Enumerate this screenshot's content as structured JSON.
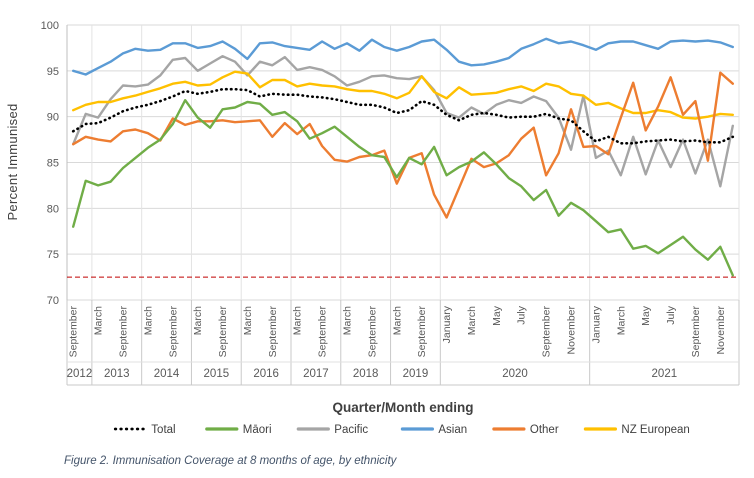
{
  "figure": {
    "caption": "Figure 2. Immunisation Coverage at 8 months of age, by ethnicity"
  },
  "chart_data": {
    "type": "line",
    "title": "",
    "xlabel": "Quarter/Month ending",
    "ylabel": "Percent Immunised",
    "ylim": [
      70,
      100
    ],
    "yticks": [
      70,
      75,
      80,
      85,
      90,
      95,
      100
    ],
    "grid": true,
    "legend_position": "bottom",
    "reference_line": {
      "value": 72.5,
      "color": "#C00000",
      "style": "dashed"
    },
    "axis_colors": {
      "grid": "#D9D9D9",
      "boundary": "#C9C9C9",
      "text": "#595959"
    },
    "x_groups": [
      {
        "year": "2012",
        "months": [
          "September",
          ""
        ]
      },
      {
        "year": "2013",
        "months": [
          "March",
          "",
          "September",
          ""
        ]
      },
      {
        "year": "2014",
        "months": [
          "March",
          "",
          "September",
          ""
        ]
      },
      {
        "year": "2015",
        "months": [
          "March",
          "",
          "September",
          ""
        ]
      },
      {
        "year": "2016",
        "months": [
          "March",
          "",
          "September",
          ""
        ]
      },
      {
        "year": "2017",
        "months": [
          "March",
          "",
          "September",
          ""
        ]
      },
      {
        "year": "2018",
        "months": [
          "March",
          "",
          "September",
          ""
        ]
      },
      {
        "year": "2019",
        "months": [
          "March",
          "",
          "September",
          ""
        ]
      },
      {
        "year": "2020",
        "months": [
          "January",
          "",
          "March",
          "",
          "May",
          "",
          "July",
          "",
          "September",
          "",
          "November",
          ""
        ]
      },
      {
        "year": "2021",
        "months": [
          "January",
          "",
          "March",
          "",
          "May",
          "",
          "July",
          "",
          "September",
          "",
          "November",
          ""
        ]
      }
    ],
    "series": [
      {
        "name": "Total",
        "color": "#000000",
        "style": "dotted",
        "values": [
          88.4,
          89.2,
          89.3,
          89.9,
          90.6,
          91.0,
          91.3,
          91.7,
          92.2,
          92.8,
          92.5,
          92.7,
          93.0,
          93.0,
          92.9,
          92.2,
          92.5,
          92.4,
          92.4,
          92.2,
          92.1,
          91.9,
          91.6,
          91.3,
          91.3,
          91.0,
          90.4,
          90.7,
          91.7,
          91.3,
          90.2,
          89.6,
          90.2,
          90.4,
          90.2,
          89.9,
          90.0,
          90.0,
          90.3,
          89.8,
          89.6,
          88.4,
          87.3,
          87.8,
          87.1,
          87.1,
          87.3,
          87.4,
          87.5,
          87.3,
          87.4,
          87.2,
          87.2,
          87.8
        ]
      },
      {
        "name": "Māori",
        "color": "#70AD47",
        "style": "solid",
        "values": [
          78.0,
          83.0,
          82.5,
          82.9,
          84.4,
          85.5,
          86.6,
          87.5,
          89.2,
          91.8,
          89.9,
          88.8,
          90.8,
          91.0,
          91.6,
          91.4,
          90.2,
          90.5,
          89.5,
          87.6,
          88.2,
          88.9,
          87.8,
          86.7,
          85.8,
          85.6,
          83.4,
          85.5,
          84.8,
          86.7,
          83.6,
          84.5,
          85.1,
          86.1,
          84.8,
          83.3,
          82.4,
          80.9,
          82.0,
          79.2,
          80.6,
          79.8,
          78.6,
          77.4,
          77.7,
          75.6,
          75.9,
          75.1,
          76.0,
          76.9,
          75.5,
          74.4,
          75.8,
          72.7
        ]
      },
      {
        "name": "Pacific",
        "color": "#A5A5A5",
        "style": "solid",
        "values": [
          87.0,
          90.3,
          89.9,
          91.9,
          93.4,
          93.3,
          93.5,
          94.5,
          96.2,
          96.4,
          95.0,
          95.8,
          96.6,
          96.0,
          94.5,
          96.0,
          95.6,
          96.5,
          95.1,
          95.4,
          95.1,
          94.4,
          93.4,
          93.8,
          94.4,
          94.5,
          94.2,
          94.1,
          94.4,
          92.9,
          90.4,
          89.9,
          91.0,
          90.3,
          91.3,
          91.8,
          91.5,
          92.2,
          91.7,
          89.9,
          86.4,
          92.3,
          85.5,
          86.3,
          83.6,
          87.8,
          83.7,
          87.4,
          84.5,
          87.5,
          83.8,
          87.5,
          82.4,
          89.0
        ]
      },
      {
        "name": "Asian",
        "color": "#5B9BD5",
        "style": "solid",
        "values": [
          95.0,
          94.6,
          95.3,
          96.0,
          96.9,
          97.4,
          97.2,
          97.3,
          98.0,
          98.0,
          97.5,
          97.7,
          98.2,
          97.4,
          96.3,
          98.0,
          98.1,
          97.7,
          97.5,
          97.3,
          98.2,
          97.4,
          98.0,
          97.2,
          98.4,
          97.6,
          97.2,
          97.6,
          98.2,
          98.4,
          97.3,
          96.0,
          95.6,
          95.7,
          96.0,
          96.4,
          97.4,
          97.9,
          98.5,
          98.0,
          98.2,
          97.8,
          97.3,
          98.0,
          98.2,
          98.2,
          97.8,
          97.4,
          98.2,
          98.3,
          98.2,
          98.3,
          98.1,
          97.6
        ]
      },
      {
        "name": "Other",
        "color": "#ED7D31",
        "style": "solid",
        "values": [
          87.0,
          87.8,
          87.5,
          87.3,
          88.4,
          88.6,
          88.2,
          87.4,
          89.8,
          89.1,
          89.5,
          89.5,
          89.6,
          89.4,
          89.5,
          89.6,
          87.8,
          89.3,
          88.1,
          89.2,
          86.8,
          85.3,
          85.1,
          85.6,
          85.8,
          86.3,
          82.7,
          85.5,
          86.0,
          81.5,
          79.0,
          82.2,
          85.4,
          84.5,
          84.9,
          85.8,
          87.6,
          88.8,
          83.6,
          86.0,
          90.8,
          86.7,
          86.8,
          85.9,
          89.9,
          93.7,
          88.5,
          91.1,
          94.3,
          90.2,
          91.7,
          85.2,
          94.8,
          93.6
        ]
      },
      {
        "name": "NZ European",
        "color": "#FFC000",
        "style": "solid",
        "values": [
          90.7,
          91.3,
          91.6,
          91.6,
          92.0,
          92.3,
          92.7,
          93.1,
          93.6,
          93.8,
          93.4,
          93.5,
          94.3,
          94.9,
          94.7,
          93.2,
          94.0,
          94.0,
          93.3,
          93.6,
          93.4,
          93.3,
          93.0,
          92.8,
          92.8,
          92.5,
          92.0,
          92.6,
          94.4,
          92.7,
          92.0,
          93.2,
          92.4,
          92.5,
          92.6,
          93.0,
          93.3,
          92.8,
          93.6,
          93.3,
          92.5,
          92.3,
          91.3,
          91.5,
          90.9,
          90.4,
          90.4,
          90.7,
          90.5,
          89.9,
          89.8,
          90.0,
          90.3,
          90.2
        ]
      }
    ]
  }
}
